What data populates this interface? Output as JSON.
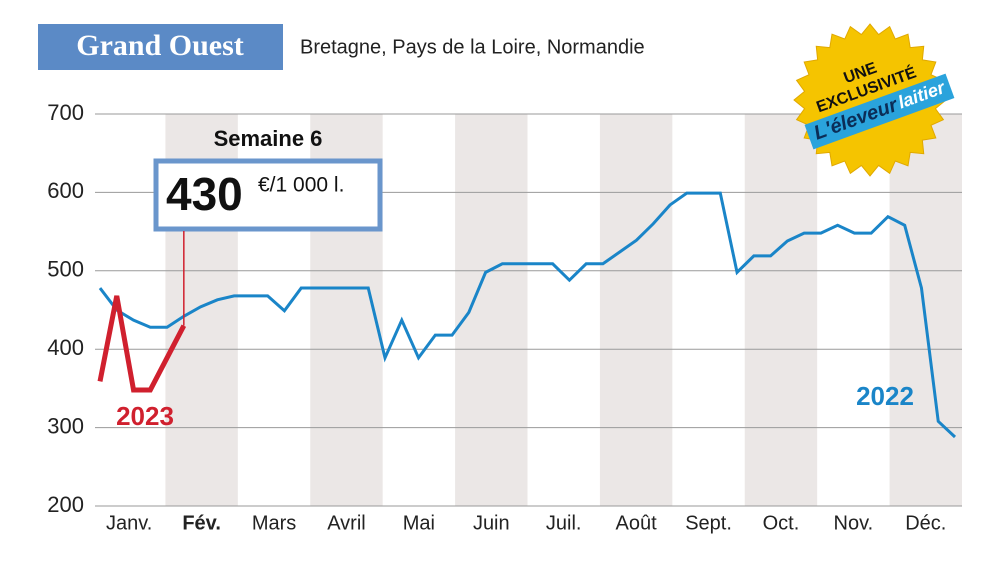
{
  "chart_data": {
    "type": "line",
    "title": "Grand Ouest",
    "subtitle": "Bretagne, Pays de la Loire, Normandie",
    "months": [
      "Janv.",
      "Fév.",
      "Mars",
      "Avril",
      "Mai",
      "Juin",
      "Juil.",
      "Août",
      "Sept.",
      "Oct.",
      "Nov.",
      "Déc."
    ],
    "highlight_month": 1,
    "ylim": [
      200,
      700
    ],
    "yticks": [
      200,
      300,
      400,
      500,
      600,
      700
    ],
    "grid": true,
    "shaded_bands": true,
    "series": [
      {
        "name": "2022",
        "color": "#1a85c8",
        "values": [
          478,
          450,
          437,
          428,
          428,
          442,
          454,
          463,
          468,
          468,
          468,
          449,
          478,
          478,
          478,
          478,
          478,
          389,
          437,
          389,
          418,
          418,
          447,
          498,
          509,
          509,
          509,
          509,
          488,
          509,
          509,
          524,
          539,
          560,
          584,
          599,
          599,
          599,
          498,
          519,
          519,
          538,
          548,
          548,
          558,
          548,
          548,
          569,
          558,
          478,
          308,
          288
        ]
      },
      {
        "name": "2023",
        "color": "#d0202e",
        "values": [
          359,
          468,
          348,
          348,
          389,
          430
        ]
      }
    ],
    "annotation": {
      "label": "Semaine 6",
      "value": 430,
      "unit": "€/1 000 l."
    },
    "badge": {
      "line1": "UNE",
      "line2": "EXCLUSIVITÉ",
      "brand1": "L'éleveur",
      "brand2": "laitier"
    }
  }
}
